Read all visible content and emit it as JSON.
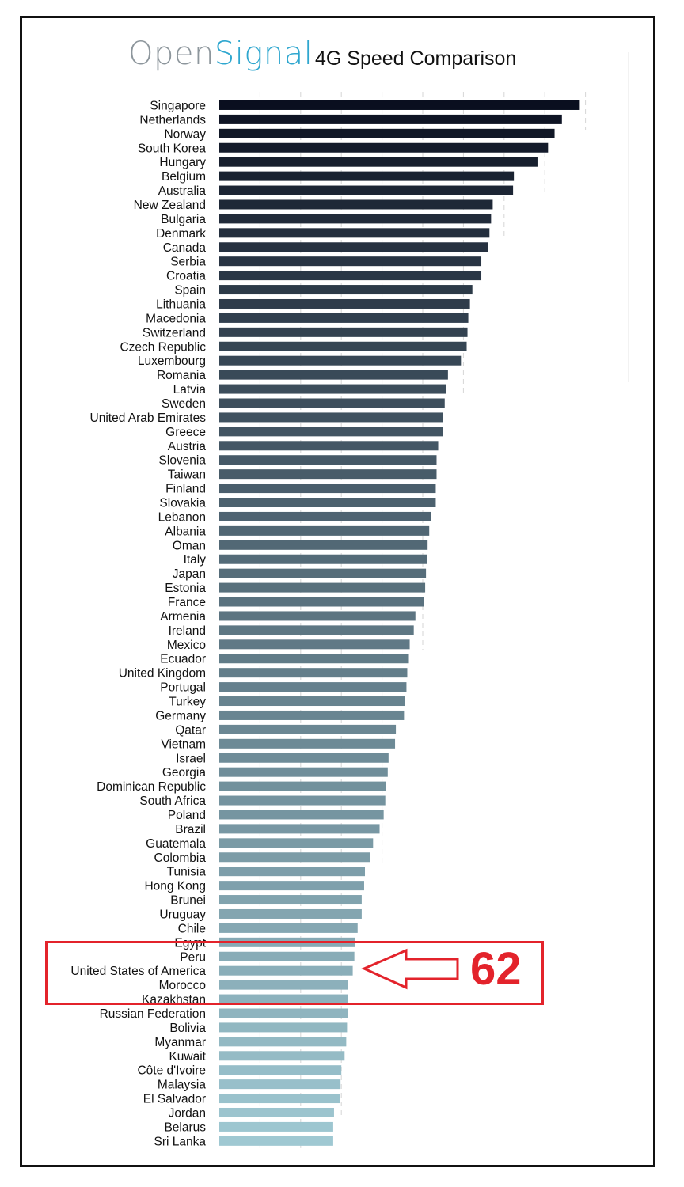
{
  "header": {
    "logo_open": "Open",
    "logo_signal": "Signal",
    "title": "4G Speed Comparison"
  },
  "annotation": {
    "rank": "62",
    "highlighted": [
      "Peru",
      "United States of America",
      "Morocco",
      "Kazakhstan"
    ],
    "color": "#e3232b"
  },
  "colors": {
    "bar_start": "#0a0f1f",
    "bar_end": "#9fc8d2",
    "grid": "#d6d6d6",
    "highlight": "#e3232b",
    "logo_gray": "#8d969c",
    "logo_blue": "#2fa7cf"
  },
  "chart_data": {
    "type": "bar",
    "orientation": "horizontal",
    "title": "4G Speed Comparison",
    "xlabel": "",
    "ylabel": "",
    "xlim": [
      0,
      46
    ],
    "grid": true,
    "categories": [
      "Singapore",
      "Netherlands",
      "Norway",
      "South Korea",
      "Hungary",
      "Belgium",
      "Australia",
      "New Zealand",
      "Bulgaria",
      "Denmark",
      "Canada",
      "Serbia",
      "Croatia",
      "Spain",
      "Lithuania",
      "Macedonia",
      "Switzerland",
      "Czech Republic",
      "Luxembourg",
      "Romania",
      "Latvia",
      "Sweden",
      "United Arab Emirates",
      "Greece",
      "Austria",
      "Slovenia",
      "Taiwan",
      "Finland",
      "Slovakia",
      "Lebanon",
      "Albania",
      "Oman",
      "Italy",
      "Japan",
      "Estonia",
      "France",
      "Armenia",
      "Ireland",
      "Mexico",
      "Ecuador",
      "United Kingdom",
      "Portugal",
      "Turkey",
      "Germany",
      "Qatar",
      "Vietnam",
      "Israel",
      "Georgia",
      "Dominican Republic",
      "South Africa",
      "Poland",
      "Brazil",
      "Guatemala",
      "Colombia",
      "Tunisia",
      "Hong Kong",
      "Brunei",
      "Uruguay",
      "Chile",
      "Egypt",
      "Peru",
      "United States of America",
      "Morocco",
      "Kazakhstan",
      "Russian Federation",
      "Bolivia",
      "Myanmar",
      "Kuwait",
      "Côte d'Ivoire",
      "Malaysia",
      "El Salvador",
      "Jordan",
      "Belarus",
      "Sri Lanka"
    ],
    "values": [
      44.3,
      42.1,
      41.2,
      40.4,
      39.1,
      36.2,
      36.1,
      33.6,
      33.4,
      33.2,
      33.0,
      32.2,
      32.2,
      31.1,
      30.8,
      30.6,
      30.5,
      30.4,
      29.7,
      28.1,
      27.9,
      27.7,
      27.5,
      27.5,
      26.9,
      26.7,
      26.7,
      26.6,
      26.6,
      26.0,
      25.8,
      25.6,
      25.5,
      25.4,
      25.3,
      25.1,
      24.1,
      23.9,
      23.4,
      23.3,
      23.1,
      23.0,
      22.8,
      22.7,
      21.7,
      21.6,
      20.8,
      20.7,
      20.5,
      20.4,
      20.2,
      19.7,
      18.9,
      18.5,
      17.9,
      17.8,
      17.5,
      17.5,
      17.0,
      16.7,
      16.6,
      16.4,
      15.8,
      15.8,
      15.8,
      15.7,
      15.6,
      15.4,
      15.0,
      14.9,
      14.8,
      14.1,
      14.0,
      14.0
    ]
  }
}
